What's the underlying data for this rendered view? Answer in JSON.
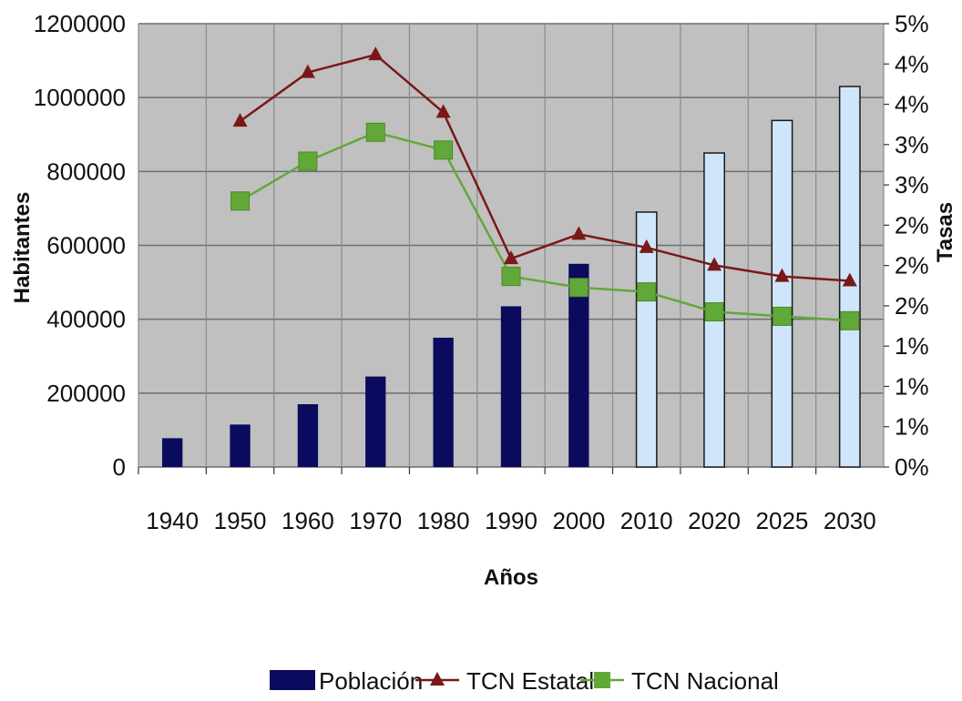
{
  "chart_data": {
    "type": "bar+line",
    "xlabel": "Años",
    "ylabel_left": "Habitantes",
    "ylabel_right": "Tasas",
    "categories": [
      "1940",
      "1950",
      "1960",
      "1970",
      "1980",
      "1990",
      "2000",
      "2010",
      "2020",
      "2025",
      "2030"
    ],
    "ylim_left": [
      0,
      1200000
    ],
    "yticks_left": [
      "0",
      "200000",
      "400000",
      "600000",
      "800000",
      "1000000",
      "1200000"
    ],
    "ylim_right": [
      0,
      1
    ],
    "yticks_right": [
      "0%",
      "1%",
      "1%",
      "1%",
      "2%",
      "2%",
      "2%",
      "3%",
      "3%",
      "4%",
      "4%",
      "5%"
    ],
    "grid": true,
    "legend_position": "bottom",
    "series": [
      {
        "name": "Población",
        "kind": "bar",
        "color": "#0a0a5e",
        "projected_color": "#cfe6fa",
        "projected_categories": [
          "2010",
          "2020",
          "2025",
          "2030"
        ],
        "values": [
          78000,
          115000,
          170000,
          245000,
          350000,
          435000,
          550000,
          690000,
          850000,
          938000,
          1030000
        ]
      },
      {
        "name": "TCN Estatal",
        "kind": "line",
        "marker": "triangle",
        "color": "#7a1818",
        "values": [
          null,
          0.78,
          0.89,
          0.93,
          0.8,
          0.47,
          0.525,
          0.495,
          0.455,
          0.43,
          0.42
        ]
      },
      {
        "name": "TCN Nacional",
        "kind": "line",
        "marker": "square",
        "color": "#62a838",
        "values": [
          null,
          0.6,
          0.69,
          0.755,
          0.715,
          0.43,
          0.405,
          0.395,
          0.35,
          0.34,
          0.33
        ]
      }
    ]
  }
}
